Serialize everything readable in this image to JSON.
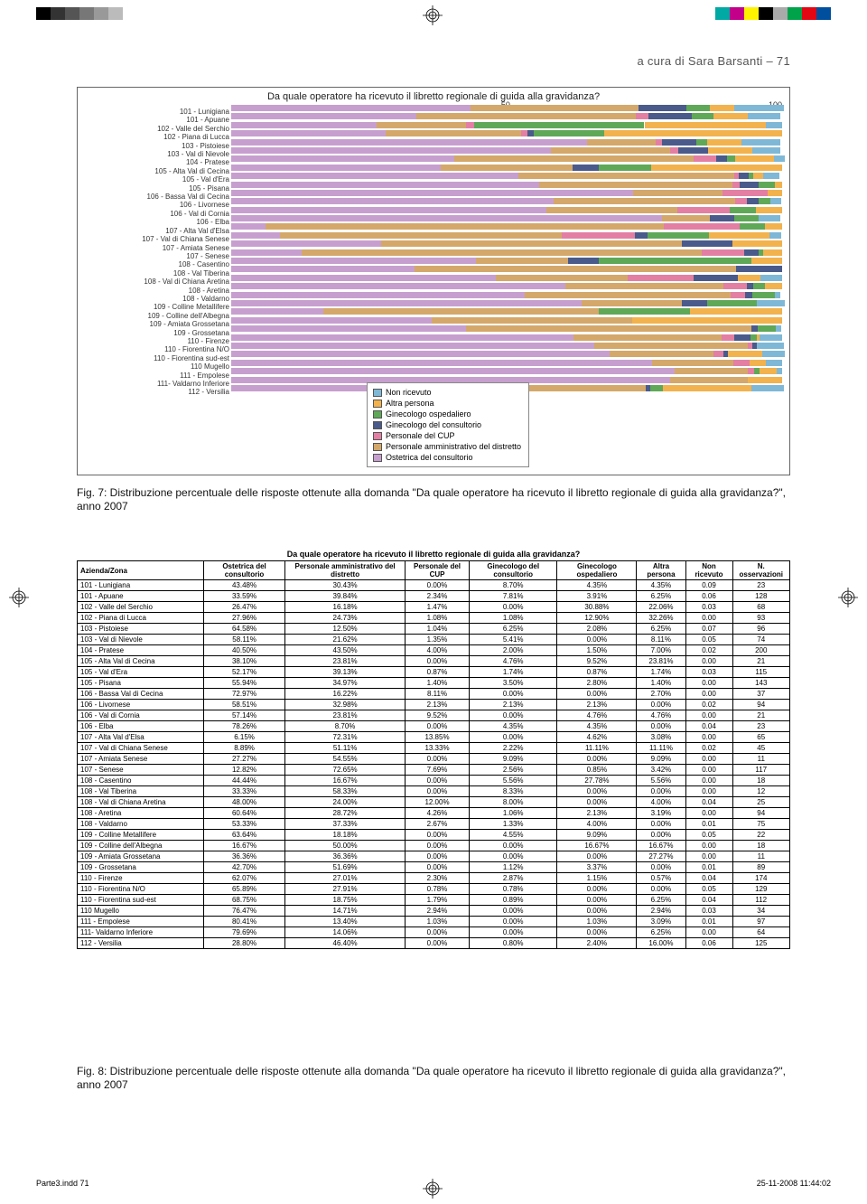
{
  "print_marks": {
    "left_bar_colors": [
      "#000000",
      "#333333",
      "#555555",
      "#777777",
      "#999999",
      "#bbbbbb"
    ],
    "right_bar_colors": [
      "#00a9a4",
      "#c2008a",
      "#fff200",
      "#000000",
      "#aaaaaa",
      "#00a34a",
      "#e30613",
      "#004f9e"
    ]
  },
  "header_text": "a cura di Sara Barsanti – 71",
  "chart": {
    "title": "Da quale operatore ha ricevuto il libretto regionale di guida alla gravidanza?",
    "x_ticks": [
      "50",
      "100"
    ],
    "categories": [
      "101 - Lunigiana",
      "101 - Apuane",
      "102 - Valle del Serchio",
      "102 - Piana di Lucca",
      "103 - Pistoiese",
      "103 - Val di Nievole",
      "104 - Pratese",
      "105 - Alta Val di Cecina",
      "105 - Val d'Era",
      "105 - Pisana",
      "106 - Bassa Val di Cecina",
      "106 - Livornese",
      "106 - Val di Cornia",
      "106 - Elba",
      "107 - Alta Val d'Elsa",
      "107 - Val di Chiana Senese",
      "107 - Amiata Senese",
      "107 - Senese",
      "108 - Casentino",
      "108 - Val Tiberina",
      "108 - Val di Chiana Aretina",
      "108 - Aretina",
      "108 - Valdarno",
      "109 - Colline Metallifere",
      "109 - Colline dell'Albegna",
      "109 - Amiata Grossetana",
      "109 - Grossetana",
      "110 - Firenze",
      "110 - Fiorentina N/O",
      "110 - Fiorentina sud-est",
      "110 Mugello",
      "111 - Empolese",
      "111- Valdarno Inferiore",
      "112 - Versilia"
    ],
    "legend": [
      {
        "label": "Non ricevuto",
        "color": "#7fb8d6"
      },
      {
        "label": "Altra persona",
        "color": "#f2b24d"
      },
      {
        "label": "Ginecologo ospedaliero",
        "color": "#5fa858"
      },
      {
        "label": "Ginecologo del consultorio",
        "color": "#4a5a8a"
      },
      {
        "label": "Personale del CUP",
        "color": "#e37fa3"
      },
      {
        "label": "Personale amministrativo del distretto",
        "color": "#d4a86a"
      },
      {
        "label": "Ostetrica del consultorio",
        "color": "#c79fcf"
      }
    ],
    "series_order_stack": [
      "ostetrica",
      "pers_amm",
      "pers_cup",
      "gineco_cons",
      "gineco_osp",
      "altra",
      "non_ric"
    ],
    "series_colors": {
      "non_ric": "#7fb8d6",
      "altra": "#f2b24d",
      "gineco_osp": "#5fa858",
      "gineco_cons": "#4a5a8a",
      "pers_cup": "#e37fa3",
      "pers_amm": "#d4a86a",
      "ostetrica": "#c79fcf"
    }
  },
  "caption1": "Fig. 7: Distribuzione percentuale delle risposte ottenute alla domanda \"Da quale operatore ha ricevuto il libretto regionale di guida alla gravidanza?\", anno 2007",
  "caption2": "Fig. 8: Distribuzione percentuale delle risposte ottenute alla domanda \"Da quale operatore ha ricevuto il libretto regionale di guida alla gravidanza?\", anno 2007",
  "table": {
    "title": "Da quale operatore ha ricevuto il libretto regionale di guida alla gravidanza?",
    "columns": [
      "Azienda/Zona",
      "Ostetrica del consultorio",
      "Personale amministrativo del distretto",
      "Personale del CUP",
      "Ginecologo del consultorio",
      "Ginecologo ospedaliero",
      "Altra persona",
      "Non ricevuto",
      "N. osservazioni"
    ],
    "rows": [
      [
        "101 - Lunigiana",
        "43.48%",
        "30.43%",
        "0.00%",
        "8.70%",
        "4.35%",
        "4.35%",
        "0.09",
        "23"
      ],
      [
        "101 - Apuane",
        "33.59%",
        "39.84%",
        "2.34%",
        "7.81%",
        "3.91%",
        "6.25%",
        "0.06",
        "128"
      ],
      [
        "102 - Valle del Serchio",
        "26.47%",
        "16.18%",
        "1.47%",
        "0.00%",
        "30.88%",
        "22.06%",
        "0.03",
        "68"
      ],
      [
        "102 - Piana di Lucca",
        "27.96%",
        "24.73%",
        "1.08%",
        "1.08%",
        "12.90%",
        "32.26%",
        "0.00",
        "93"
      ],
      [
        "103 - Pistoiese",
        "64.58%",
        "12.50%",
        "1.04%",
        "6.25%",
        "2.08%",
        "6.25%",
        "0.07",
        "96"
      ],
      [
        "103 - Val di Nievole",
        "58.11%",
        "21.62%",
        "1.35%",
        "5.41%",
        "0.00%",
        "8.11%",
        "0.05",
        "74"
      ],
      [
        "104 - Pratese",
        "40.50%",
        "43.50%",
        "4.00%",
        "2.00%",
        "1.50%",
        "7.00%",
        "0.02",
        "200"
      ],
      [
        "105 - Alta Val di Cecina",
        "38.10%",
        "23.81%",
        "0.00%",
        "4.76%",
        "9.52%",
        "23.81%",
        "0.00",
        "21"
      ],
      [
        "105 - Val d'Era",
        "52.17%",
        "39.13%",
        "0.87%",
        "1.74%",
        "0.87%",
        "1.74%",
        "0.03",
        "115"
      ],
      [
        "105 - Pisana",
        "55.94%",
        "34.97%",
        "1.40%",
        "3.50%",
        "2.80%",
        "1.40%",
        "0.00",
        "143"
      ],
      [
        "106 - Bassa Val di Cecina",
        "72.97%",
        "16.22%",
        "8.11%",
        "0.00%",
        "0.00%",
        "2.70%",
        "0.00",
        "37"
      ],
      [
        "106 - Livornese",
        "58.51%",
        "32.98%",
        "2.13%",
        "2.13%",
        "2.13%",
        "0.00%",
        "0.02",
        "94"
      ],
      [
        "106 - Val di Cornia",
        "57.14%",
        "23.81%",
        "9.52%",
        "0.00%",
        "4.76%",
        "4.76%",
        "0.00",
        "21"
      ],
      [
        "106 - Elba",
        "78.26%",
        "8.70%",
        "0.00%",
        "4.35%",
        "4.35%",
        "0.00%",
        "0.04",
        "23"
      ],
      [
        "107 - Alta Val d'Elsa",
        "6.15%",
        "72.31%",
        "13.85%",
        "0.00%",
        "4.62%",
        "3.08%",
        "0.00",
        "65"
      ],
      [
        "107 - Val di Chiana Senese",
        "8.89%",
        "51.11%",
        "13.33%",
        "2.22%",
        "11.11%",
        "11.11%",
        "0.02",
        "45"
      ],
      [
        "107 - Amiata Senese",
        "27.27%",
        "54.55%",
        "0.00%",
        "9.09%",
        "0.00%",
        "9.09%",
        "0.00",
        "11"
      ],
      [
        "107 - Senese",
        "12.82%",
        "72.65%",
        "7.69%",
        "2.56%",
        "0.85%",
        "3.42%",
        "0.00",
        "117"
      ],
      [
        "108 - Casentino",
        "44.44%",
        "16.67%",
        "0.00%",
        "5.56%",
        "27.78%",
        "5.56%",
        "0.00",
        "18"
      ],
      [
        "108 - Val Tiberina",
        "33.33%",
        "58.33%",
        "0.00%",
        "8.33%",
        "0.00%",
        "0.00%",
        "0.00",
        "12"
      ],
      [
        "108 - Val di Chiana Aretina",
        "48.00%",
        "24.00%",
        "12.00%",
        "8.00%",
        "0.00%",
        "4.00%",
        "0.04",
        "25"
      ],
      [
        "108 - Aretina",
        "60.64%",
        "28.72%",
        "4.26%",
        "1.06%",
        "2.13%",
        "3.19%",
        "0.00",
        "94"
      ],
      [
        "108 - Valdarno",
        "53.33%",
        "37.33%",
        "2.67%",
        "1.33%",
        "4.00%",
        "0.00%",
        "0.01",
        "75"
      ],
      [
        "109 - Colline Metallifere",
        "63.64%",
        "18.18%",
        "0.00%",
        "4.55%",
        "9.09%",
        "0.00%",
        "0.05",
        "22"
      ],
      [
        "109 - Colline dell'Albegna",
        "16.67%",
        "50.00%",
        "0.00%",
        "0.00%",
        "16.67%",
        "16.67%",
        "0.00",
        "18"
      ],
      [
        "109 - Amiata Grossetana",
        "36.36%",
        "36.36%",
        "0.00%",
        "0.00%",
        "0.00%",
        "27.27%",
        "0.00",
        "11"
      ],
      [
        "109 - Grossetana",
        "42.70%",
        "51.69%",
        "0.00%",
        "1.12%",
        "3.37%",
        "0.00%",
        "0.01",
        "89"
      ],
      [
        "110 - Firenze",
        "62.07%",
        "27.01%",
        "2.30%",
        "2.87%",
        "1.15%",
        "0.57%",
        "0.04",
        "174"
      ],
      [
        "110 - Fiorentina N/O",
        "65.89%",
        "27.91%",
        "0.78%",
        "0.78%",
        "0.00%",
        "0.00%",
        "0.05",
        "129"
      ],
      [
        "110 - Fiorentina sud-est",
        "68.75%",
        "18.75%",
        "1.79%",
        "0.89%",
        "0.00%",
        "6.25%",
        "0.04",
        "112"
      ],
      [
        "110 Mugello",
        "76.47%",
        "14.71%",
        "2.94%",
        "0.00%",
        "0.00%",
        "2.94%",
        "0.03",
        "34"
      ],
      [
        "111 - Empolese",
        "80.41%",
        "13.40%",
        "1.03%",
        "0.00%",
        "1.03%",
        "3.09%",
        "0.01",
        "97"
      ],
      [
        "111- Valdarno Inferiore",
        "79.69%",
        "14.06%",
        "0.00%",
        "0.00%",
        "0.00%",
        "6.25%",
        "0.00",
        "64"
      ],
      [
        "112 - Versilia",
        "28.80%",
        "46.40%",
        "0.00%",
        "0.80%",
        "2.40%",
        "16.00%",
        "0.06",
        "125"
      ]
    ]
  },
  "footer": {
    "left": "Parte3.indd   71",
    "right": "25-11-2008   11:44:02"
  }
}
